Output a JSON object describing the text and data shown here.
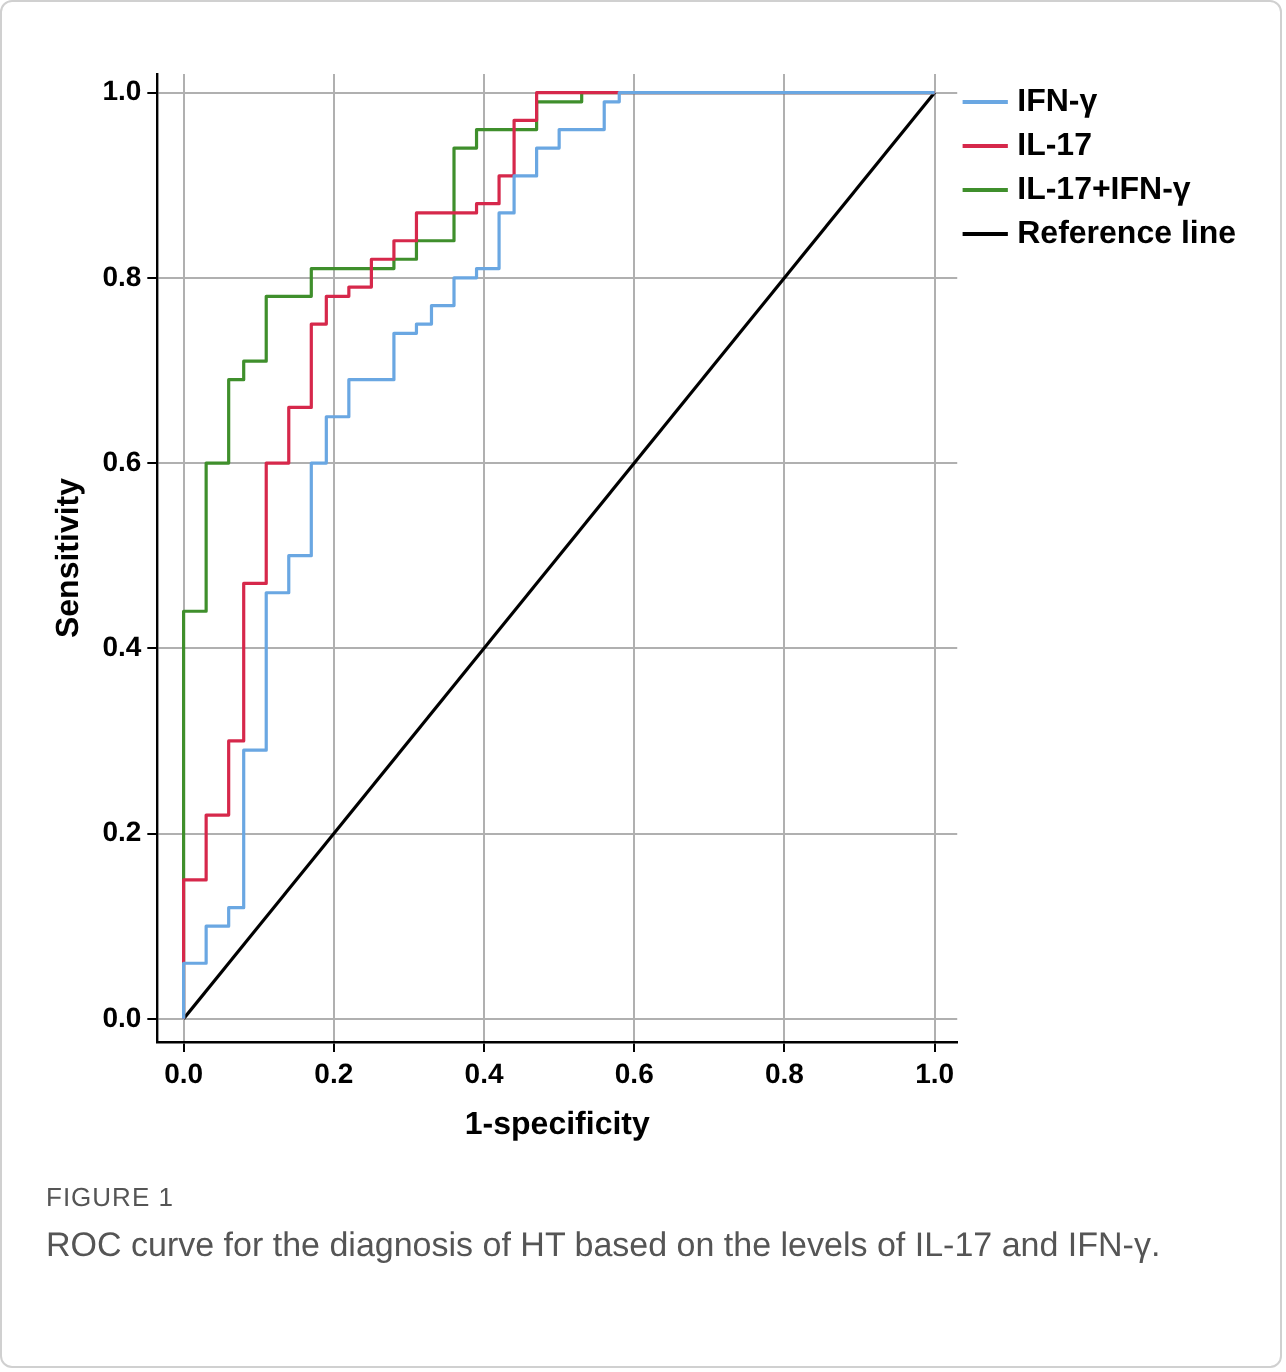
{
  "chart_data": {
    "type": "step",
    "xlabel": "1-specificity",
    "ylabel": "Sensitivity",
    "xlim": [
      -0.035,
      1.03
    ],
    "ylim": [
      -0.025,
      1.02
    ],
    "xticks": [
      {
        "value": 0,
        "label": "0.0"
      },
      {
        "value": 0.2,
        "label": "0.2"
      },
      {
        "value": 0.4,
        "label": "0.4"
      },
      {
        "value": 0.6,
        "label": "0.6"
      },
      {
        "value": 0.8,
        "label": "0.8"
      },
      {
        "value": 1,
        "label": "1.0"
      }
    ],
    "yticks": [
      {
        "value": 0,
        "label": "0.0"
      },
      {
        "value": 0.2,
        "label": "0.2"
      },
      {
        "value": 0.4,
        "label": "0.4"
      },
      {
        "value": 0.6,
        "label": "0.6"
      },
      {
        "value": 0.8,
        "label": "0.8"
      },
      {
        "value": 1,
        "label": "1.0"
      }
    ],
    "grid": true,
    "legend": "top right",
    "line_style": "solid",
    "marker": "none",
    "series": [
      {
        "name": "IFN-γ",
        "color": "#6aa7e2",
        "x": [
          0,
          0,
          0.03,
          0.06,
          0.08,
          0.11,
          0.14,
          0.17,
          0.19,
          0.22,
          0.28,
          0.31,
          0.33,
          0.36,
          0.39,
          0.42,
          0.44,
          0.47,
          0.5,
          0.56,
          0.58,
          1
        ],
        "values": [
          0,
          0.06,
          0.1,
          0.12,
          0.29,
          0.46,
          0.5,
          0.6,
          0.65,
          0.69,
          0.74,
          0.75,
          0.77,
          0.8,
          0.81,
          0.87,
          0.91,
          0.94,
          0.96,
          0.99,
          1,
          1
        ]
      },
      {
        "name": "IL-17",
        "color": "#d6284b",
        "x": [
          0,
          0,
          0.03,
          0.06,
          0.08,
          0.11,
          0.14,
          0.17,
          0.19,
          0.22,
          0.25,
          0.28,
          0.31,
          0.39,
          0.42,
          0.44,
          0.47,
          1
        ],
        "values": [
          0,
          0.15,
          0.22,
          0.3,
          0.47,
          0.6,
          0.66,
          0.75,
          0.78,
          0.79,
          0.82,
          0.84,
          0.87,
          0.88,
          0.91,
          0.97,
          1,
          1
        ]
      },
      {
        "name": "IL-17+IFN-γ",
        "color": "#3f8f2c",
        "x": [
          0,
          0,
          0.03,
          0.06,
          0.08,
          0.11,
          0.17,
          0.28,
          0.31,
          0.36,
          0.39,
          0.47,
          0.53,
          1
        ],
        "values": [
          0,
          0.44,
          0.6,
          0.69,
          0.71,
          0.78,
          0.81,
          0.82,
          0.84,
          0.94,
          0.96,
          0.99,
          1,
          1
        ]
      },
      {
        "name": "Reference line",
        "type": "line",
        "color": "#000000",
        "x": [
          0,
          1
        ],
        "values": [
          0,
          1
        ]
      }
    ],
    "annotations": [
      "FIGURE 1",
      "ROC curve for the diagnosis of HT based on the levels of IL-17 and IFN-γ."
    ]
  }
}
